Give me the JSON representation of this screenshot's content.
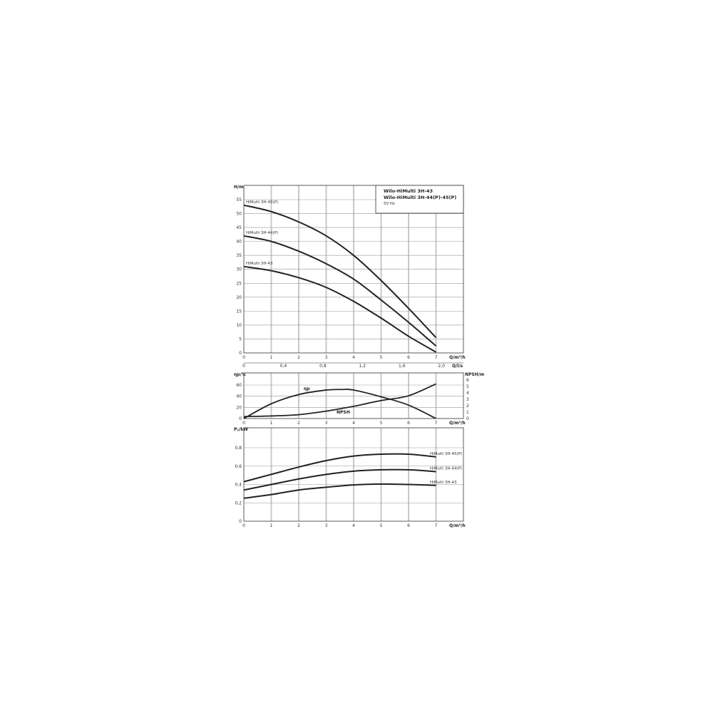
{
  "legend": {
    "line1": "Wilo-HiMulti 3H-43",
    "line2": "Wilo-HiMulti 3H-44(P)-45(P)",
    "freq": "50 Hz"
  },
  "chart_data": [
    {
      "type": "line",
      "ylabel": "H/m",
      "xlabel": "Q/m³/h",
      "xlim": [
        0,
        8
      ],
      "ylim": [
        0,
        60
      ],
      "xticks": [
        "0",
        "1",
        "2",
        "3",
        "4",
        "5",
        "6",
        "7"
      ],
      "yticks": [
        "0",
        "5",
        "10",
        "15",
        "20",
        "25",
        "30",
        "35",
        "40",
        "45",
        "50",
        "55"
      ],
      "secondary_x": {
        "label": "Q/l/s",
        "ticks": [
          "0",
          "0,4",
          "0,8",
          "1,2",
          "1,6",
          "2,0"
        ]
      },
      "x": [
        0,
        1,
        2,
        3,
        4,
        5,
        6,
        7
      ],
      "series": [
        {
          "name": "HiMulti 3H-45(P)",
          "values": [
            53,
            50.7,
            47,
            42,
            35,
            26,
            16,
            5.5
          ]
        },
        {
          "name": "HiMulti 3H-44(P)",
          "values": [
            42,
            40,
            36.5,
            32,
            26.5,
            19,
            11,
            2.5
          ]
        },
        {
          "name": "HiMulti 3H-43",
          "values": [
            31,
            29.5,
            27,
            23.5,
            18.5,
            12.5,
            6,
            0.3
          ]
        }
      ],
      "grid": true,
      "legend": "top-right"
    },
    {
      "type": "line",
      "ylabel": "ηp/%",
      "ylabel_right": "NPSH/m",
      "xlabel": "Q/m³/h",
      "xlim": [
        0,
        8
      ],
      "ylim": [
        0,
        70
      ],
      "ylim_right": [
        0,
        6
      ],
      "xticks": [
        "0",
        "1",
        "2",
        "3",
        "4",
        "5",
        "6",
        "7"
      ],
      "yticks": [
        "0",
        "20",
        "40",
        "60"
      ],
      "yticks_right": [
        "0",
        "1",
        "2",
        "3",
        "4",
        "5",
        "6"
      ],
      "x": [
        0,
        1,
        2,
        3,
        3.6,
        4,
        5,
        6,
        7
      ],
      "series": [
        {
          "name": "ηp",
          "axis": "left",
          "values": [
            0,
            26.5,
            43,
            51,
            52,
            51,
            39,
            24,
            0
          ]
        },
        {
          "name": "NPSH",
          "axis": "right",
          "values": [
            0.3,
            0.4,
            0.6,
            1.15,
            1.6,
            1.9,
            2.8,
            3.55,
            5.4
          ]
        }
      ],
      "grid": true
    },
    {
      "type": "line",
      "ylabel": "P₂/kW",
      "xlabel": "Q/m³/h",
      "xlim": [
        0,
        8
      ],
      "ylim": [
        0,
        0.9
      ],
      "xticks": [
        "0",
        "1",
        "2",
        "3",
        "4",
        "5",
        "6",
        "7"
      ],
      "yticks": [
        "0",
        "0,2",
        "0,4",
        "0,6",
        "0,8"
      ],
      "x": [
        0,
        1,
        2,
        3,
        4,
        5,
        6,
        7
      ],
      "series": [
        {
          "name": "HiMulti 3H-45(P)",
          "values": [
            0.43,
            0.51,
            0.59,
            0.66,
            0.71,
            0.73,
            0.73,
            0.7
          ]
        },
        {
          "name": "HiMulti 3H-44(P)",
          "values": [
            0.34,
            0.4,
            0.46,
            0.51,
            0.545,
            0.56,
            0.56,
            0.54
          ]
        },
        {
          "name": "HiMulti 3H-43",
          "values": [
            0.25,
            0.29,
            0.34,
            0.37,
            0.395,
            0.405,
            0.4,
            0.39
          ]
        }
      ],
      "grid": true
    }
  ]
}
